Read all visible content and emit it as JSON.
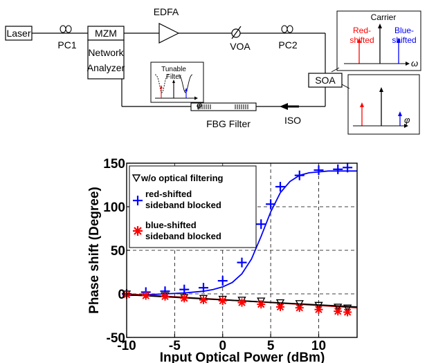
{
  "setup": {
    "laser": "Laser",
    "pc1": "PC1",
    "mzm": "MZM",
    "network_analyzer_line1": "Network",
    "network_analyzer_line2": "Analyzer",
    "edfa": "EDFA",
    "voa": "VOA",
    "pc2": "PC2",
    "soa": "SOA",
    "fbg_filter": "FBG Filter",
    "iso": "ISO",
    "tunable_filter_line1": "Tunable",
    "tunable_filter_line2": "Filter",
    "carrier": "Carrier",
    "red_shifted_line1": "Red-",
    "red_shifted_line2": "shifted",
    "blue_shifted_line1": "Blue-",
    "blue_shifted_line2": "shifted",
    "omega": "ω",
    "phi": "φ",
    "colors": {
      "red": "#ff0000",
      "blue": "#0000ff"
    }
  },
  "chart_data": {
    "type": "scatter",
    "xlabel": "Input Optical Power  (dBm)",
    "ylabel": "Phase shift (Degree)",
    "xlim": [
      -10,
      14
    ],
    "ylim": [
      -50,
      150
    ],
    "x_ticks": [
      -10,
      -5,
      0,
      5,
      10
    ],
    "y_ticks": [
      -50,
      0,
      50,
      100,
      150
    ],
    "grid": true,
    "legend_position": "top-left",
    "series": [
      {
        "name": "w/o optical filtering",
        "marker": "triangle-down",
        "color": "#000000",
        "x": [
          -10,
          -8,
          -6,
          -4,
          -2,
          0,
          2,
          4,
          6,
          8,
          10,
          12,
          13
        ],
        "y": [
          0,
          -1,
          -2,
          -4,
          -5,
          -6,
          -7,
          -8,
          -10,
          -11,
          -13,
          -15,
          -16
        ]
      },
      {
        "name": "red-shifted sideband blocked",
        "marker": "plus",
        "color": "#0000ff",
        "x": [
          -10,
          -8,
          -6,
          -4,
          -2,
          0,
          2,
          4,
          5,
          6,
          8,
          10,
          12,
          13
        ],
        "y": [
          0,
          2,
          3,
          5,
          7,
          15,
          36,
          80,
          103,
          123,
          136,
          142,
          143,
          145
        ]
      },
      {
        "name": "blue-shifted sideband blocked",
        "marker": "asterisk",
        "color": "#ff0000",
        "x": [
          -10,
          -8,
          -6,
          -4,
          -2,
          0,
          2,
          4,
          6,
          8,
          10,
          12,
          13
        ],
        "y": [
          -1,
          -2,
          -3,
          -5,
          -7,
          -8,
          -10,
          -12,
          -15,
          -16,
          -18,
          -20,
          -21
        ]
      }
    ],
    "fits": [
      {
        "name": "blue-fit",
        "color": "#0000ff",
        "x": [
          -10,
          -8,
          -6,
          -4,
          -2,
          -1,
          0,
          1,
          2,
          3,
          4,
          5,
          6,
          7,
          8,
          9,
          10,
          11,
          12,
          13,
          14
        ],
        "y": [
          -2,
          -1,
          0,
          1,
          3,
          5,
          8,
          13,
          23,
          40,
          66,
          94,
          116,
          129,
          136,
          139,
          140,
          141,
          141,
          141,
          141
        ]
      },
      {
        "name": "red-fit",
        "color": "#cc0000",
        "x": [
          -10,
          14
        ],
        "y": [
          0,
          -16
        ]
      },
      {
        "name": "black-fit",
        "color": "#000000",
        "x": [
          -10,
          14
        ],
        "y": [
          -1,
          -15
        ]
      }
    ]
  }
}
